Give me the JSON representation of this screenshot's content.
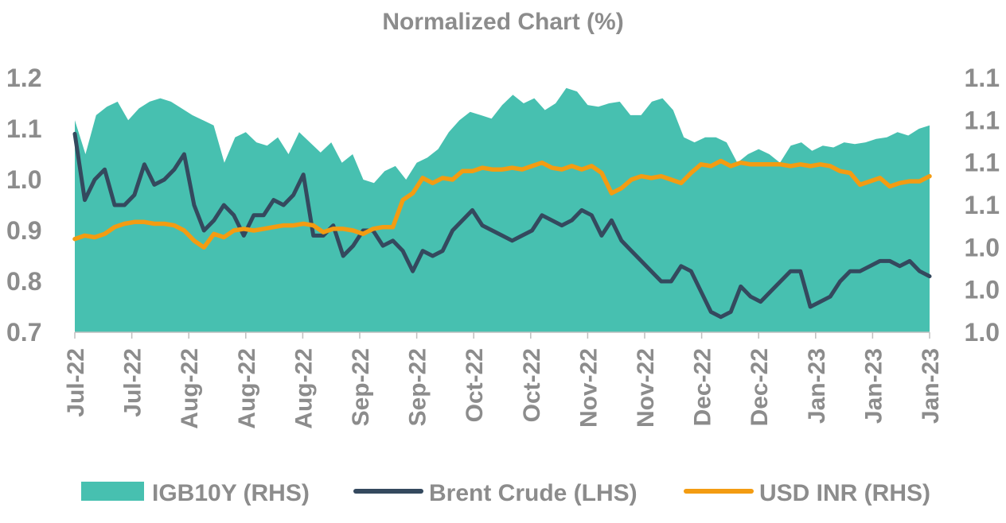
{
  "chart_data": {
    "type": "line",
    "title": "Normalized Chart (%)",
    "x_tick_labels": [
      "Jul-22",
      "Jul-22",
      "Aug-22",
      "Aug-22",
      "Aug-22",
      "Sep-22",
      "Sep-22",
      "Oct-22",
      "Oct-22",
      "Nov-22",
      "Nov-22",
      "Dec-22",
      "Dec-22",
      "Jan-23",
      "Jan-23",
      "Jan-23"
    ],
    "y_left": {
      "ticks": [
        "0.7",
        "0.8",
        "0.9",
        "1.0",
        "1.1",
        "1.2"
      ],
      "range": [
        0.7,
        1.2
      ]
    },
    "y_right": {
      "ticks": [
        "1.0",
        "1.0",
        "1.0",
        "1.1",
        "1.1",
        "1.1",
        "1.1"
      ],
      "range": [
        0.97,
        1.12
      ]
    },
    "legend_position": "bottom",
    "series": [
      {
        "name": "IGB10Y (RHS)",
        "kind": "area",
        "axis": "right",
        "color": "#47c0b0",
        "values": [
          1.095,
          1.075,
          1.098,
          1.103,
          1.106,
          1.095,
          1.102,
          1.106,
          1.108,
          1.106,
          1.102,
          1.098,
          1.095,
          1.092,
          1.07,
          1.085,
          1.088,
          1.082,
          1.08,
          1.085,
          1.075,
          1.088,
          1.082,
          1.076,
          1.082,
          1.07,
          1.075,
          1.06,
          1.058,
          1.065,
          1.068,
          1.06,
          1.07,
          1.073,
          1.078,
          1.088,
          1.095,
          1.1,
          1.098,
          1.096,
          1.104,
          1.11,
          1.105,
          1.108,
          1.101,
          1.105,
          1.114,
          1.112,
          1.104,
          1.103,
          1.105,
          1.106,
          1.098,
          1.098,
          1.106,
          1.108,
          1.101,
          1.085,
          1.082,
          1.085,
          1.085,
          1.082,
          1.07,
          1.075,
          1.078,
          1.075,
          1.07,
          1.08,
          1.082,
          1.077,
          1.08,
          1.079,
          1.082,
          1.081,
          1.082,
          1.084,
          1.085,
          1.088,
          1.086,
          1.09,
          1.092
        ]
      },
      {
        "name": "Brent Crude (LHS)",
        "kind": "line",
        "axis": "left",
        "color": "#34495e",
        "values": [
          1.09,
          0.96,
          1.0,
          1.02,
          0.95,
          0.95,
          0.97,
          1.03,
          0.99,
          1.0,
          1.02,
          1.05,
          0.95,
          0.9,
          0.92,
          0.95,
          0.93,
          0.89,
          0.93,
          0.93,
          0.96,
          0.95,
          0.97,
          1.01,
          0.89,
          0.89,
          0.91,
          0.85,
          0.87,
          0.9,
          0.9,
          0.87,
          0.88,
          0.86,
          0.82,
          0.86,
          0.85,
          0.86,
          0.9,
          0.92,
          0.94,
          0.91,
          0.9,
          0.89,
          0.88,
          0.89,
          0.9,
          0.93,
          0.92,
          0.91,
          0.92,
          0.94,
          0.93,
          0.89,
          0.92,
          0.88,
          0.86,
          0.84,
          0.82,
          0.8,
          0.8,
          0.83,
          0.82,
          0.78,
          0.74,
          0.73,
          0.74,
          0.79,
          0.77,
          0.76,
          0.78,
          0.8,
          0.82,
          0.82,
          0.75,
          0.76,
          0.77,
          0.8,
          0.82,
          0.82,
          0.83,
          0.84,
          0.84,
          0.83,
          0.84,
          0.82,
          0.81
        ]
      },
      {
        "name": "USD INR (RHS)",
        "kind": "line",
        "axis": "right",
        "color": "#f39c12",
        "values": [
          1.025,
          1.027,
          1.026,
          1.028,
          1.032,
          1.034,
          1.035,
          1.035,
          1.034,
          1.034,
          1.033,
          1.03,
          1.024,
          1.02,
          1.028,
          1.026,
          1.03,
          1.031,
          1.03,
          1.031,
          1.032,
          1.033,
          1.033,
          1.034,
          1.033,
          1.029,
          1.031,
          1.031,
          1.03,
          1.028,
          1.031,
          1.032,
          1.032,
          1.048,
          1.052,
          1.061,
          1.058,
          1.061,
          1.06,
          1.065,
          1.065,
          1.067,
          1.066,
          1.066,
          1.067,
          1.066,
          1.068,
          1.07,
          1.067,
          1.066,
          1.068,
          1.066,
          1.068,
          1.064,
          1.052,
          1.055,
          1.06,
          1.062,
          1.061,
          1.062,
          1.06,
          1.058,
          1.064,
          1.069,
          1.068,
          1.071,
          1.068,
          1.07,
          1.069,
          1.069,
          1.069,
          1.069,
          1.068,
          1.069,
          1.068,
          1.069,
          1.068,
          1.065,
          1.064,
          1.057,
          1.059,
          1.061,
          1.056,
          1.058,
          1.059,
          1.059,
          1.062
        ]
      }
    ]
  }
}
